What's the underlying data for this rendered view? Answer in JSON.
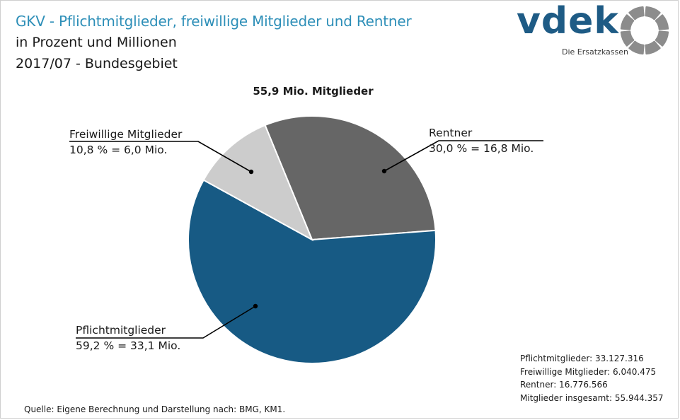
{
  "header": {
    "title": "GKV - Pflichtmitglieder, freiwillige Mitglieder und Rentner",
    "subtitle_1": "in Prozent und Millionen",
    "subtitle_2": "2017/07 - Bundesgebiet"
  },
  "logo": {
    "wordmark": "vdek",
    "tagline": "Die Ersatzkassen"
  },
  "colors": {
    "title": "#2e8fb8",
    "pflicht": "#175a84",
    "freiwillig": "#cccccc",
    "rentner": "#666666",
    "logo": "#1e5b85",
    "emblem": "#8c8c8c"
  },
  "chart_data": {
    "type": "pie",
    "title": "55,9 Mio. Mitglieder",
    "slices": [
      {
        "name": "Pflichtmitglieder",
        "percent": 59.2,
        "label": "59,2 % = 33,1 Mio.",
        "color": "#175a84"
      },
      {
        "name": "Freiwillige Mitglieder",
        "percent": 10.8,
        "label": "10,8 % = 6,0 Mio.",
        "color": "#cccccc"
      },
      {
        "name": "Rentner",
        "percent": 30.0,
        "label": "30,0 % = 16,8 Mio.",
        "color": "#666666"
      }
    ]
  },
  "stats": {
    "pflicht": "Pflichtmitglieder: 33.127.316",
    "freiwillig": "Freiwillige Mitglieder: 6.040.475",
    "rentner": "Rentner: 16.776.566",
    "gesamt": "Mitglieder insgesamt: 55.944.357"
  },
  "source": "Quelle: Eigene Berechnung und Darstellung nach: BMG, KM1."
}
